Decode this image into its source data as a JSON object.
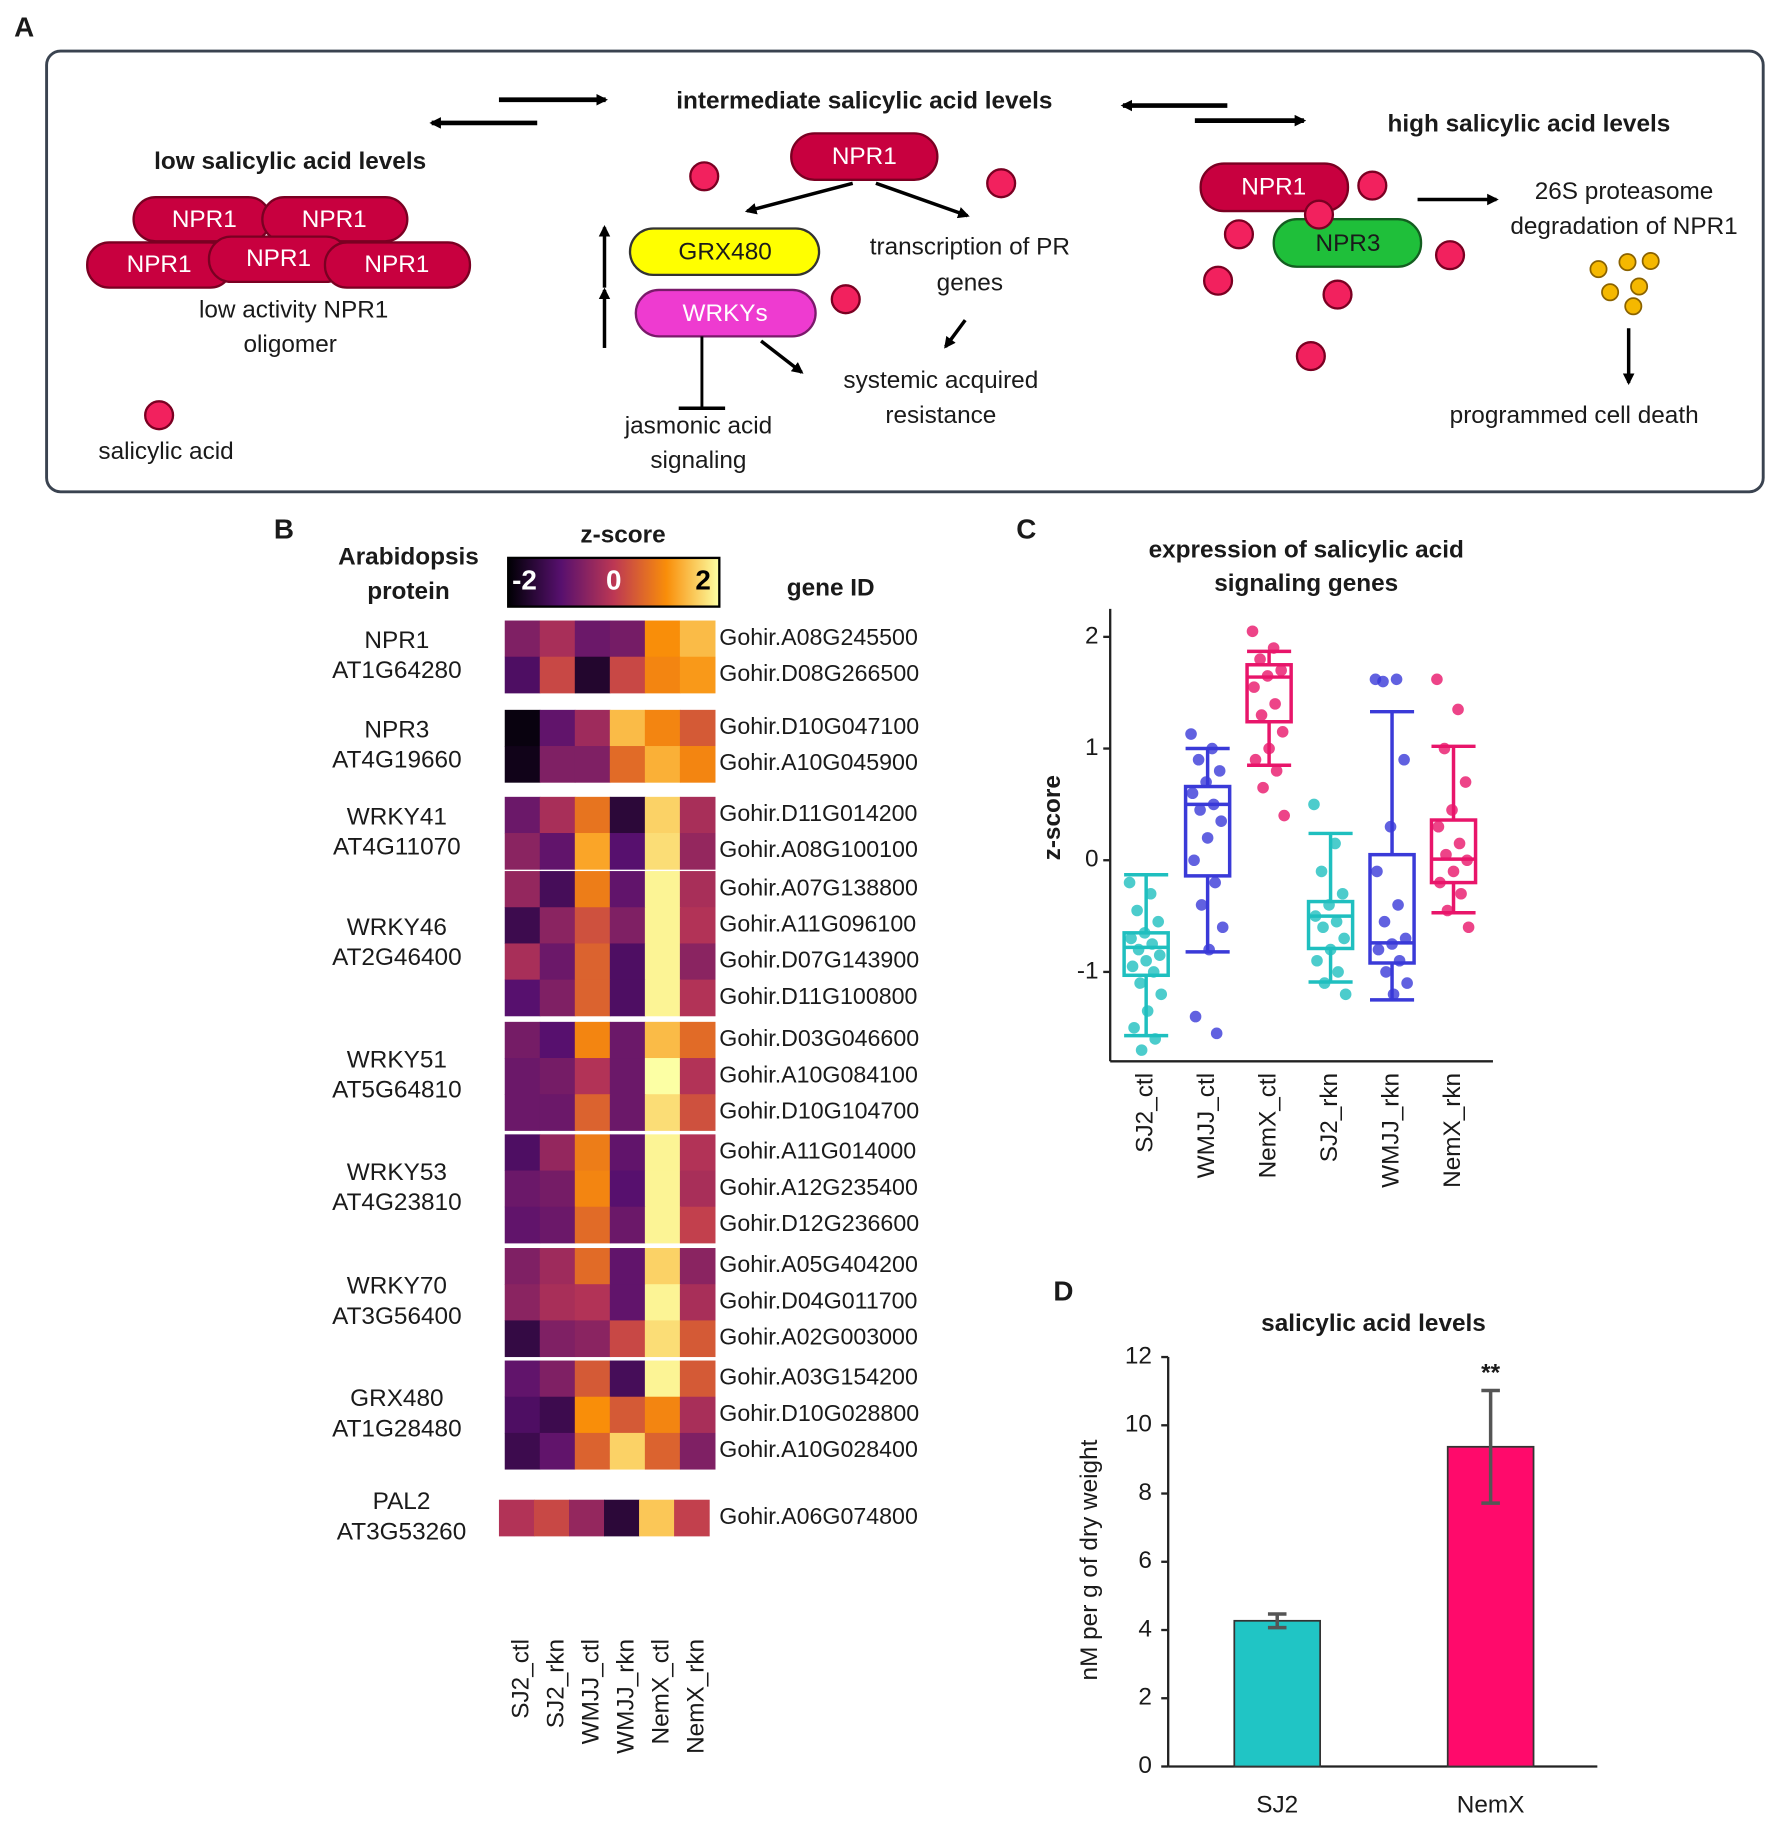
{
  "panels": [
    "A",
    "B",
    "C",
    "D"
  ],
  "diagram": {
    "low": {
      "title": "low salicylic acid levels",
      "oligomer": [
        "NPR1",
        "NPR1",
        "NPR1",
        "NPR1",
        "NPR1"
      ],
      "caption": [
        "low activity NPR1",
        "oligomer"
      ],
      "legend": "salicylic acid"
    },
    "intermediate": {
      "title": "intermediate salicylic acid levels",
      "npr1": "NPR1",
      "grx": "GRX480",
      "wrky": "WRKYs",
      "pr": [
        "transcription of PR",
        "genes"
      ],
      "sar": [
        "systemic acquired",
        "resistance"
      ],
      "ja": [
        "jasmonic acid",
        "signaling"
      ]
    },
    "high": {
      "title": "high salicylic acid levels",
      "npr1": "NPR1",
      "npr3": "NPR3",
      "proteasome": [
        "26S proteasome",
        "degradation of NPR1"
      ],
      "death": "programmed cell death"
    }
  },
  "chart_data": [
    {
      "type": "heatmap",
      "row_header": [
        "Arabidopsis",
        "protein"
      ],
      "column_header": "gene ID",
      "colorbar_title": "z-score",
      "zlim": [
        -2,
        2
      ],
      "zticks": [
        -2,
        0,
        2
      ],
      "colormap": [
        "#000004",
        "#57106e",
        "#bc3754",
        "#f98e09",
        "#fcffa4"
      ],
      "columns": [
        "SJ2_ctl",
        "SJ2_rkn",
        "WMJJ_ctl",
        "WMJJ_rkn",
        "NemX_ctl",
        "NemX_rkn"
      ],
      "groups": [
        {
          "protein": "NPR1",
          "locus": "AT1G64280",
          "genes": [
            "Gohir.A08G245500",
            "Gohir.D08G266500"
          ],
          "values": [
            [
              -0.6,
              -0.2,
              -0.8,
              -0.7,
              1.0,
              1.4
            ],
            [
              -1.1,
              0.2,
              -1.6,
              0.2,
              0.9,
              1.1
            ]
          ]
        },
        {
          "protein": "NPR3",
          "locus": "AT4G19660",
          "genes": [
            "Gohir.D10G047100",
            "Gohir.A10G045900"
          ],
          "values": [
            [
              -1.9,
              -0.9,
              -0.3,
              1.4,
              0.9,
              0.4
            ],
            [
              -1.8,
              -0.6,
              -0.6,
              0.6,
              1.3,
              0.9
            ]
          ]
        },
        {
          "protein": "WRKY41",
          "locus": "AT4G11070",
          "genes": [
            "Gohir.D11G014200",
            "Gohir.A08G100100"
          ],
          "values": [
            [
              -0.8,
              -0.2,
              0.7,
              -1.5,
              1.6,
              -0.2
            ],
            [
              -0.5,
              -0.9,
              1.2,
              -1.0,
              1.7,
              -0.4
            ]
          ]
        },
        {
          "protein": "WRKY46",
          "locus": "AT2G46400",
          "genes": [
            "Gohir.A07G138800",
            "Gohir.A11G096100",
            "Gohir.D07G143900",
            "Gohir.D11G100800"
          ],
          "values": [
            [
              -0.4,
              -1.2,
              0.8,
              -0.9,
              1.9,
              -0.2
            ],
            [
              -1.3,
              -0.5,
              0.3,
              -0.6,
              1.9,
              -0.1
            ],
            [
              -0.2,
              -0.8,
              0.5,
              -1.1,
              1.9,
              -0.5
            ],
            [
              -1.0,
              -0.6,
              0.5,
              -1.1,
              1.9,
              -0.1
            ]
          ]
        },
        {
          "protein": "WRKY51",
          "locus": "AT5G64810",
          "genes": [
            "Gohir.D03G046600",
            "Gohir.A10G084100",
            "Gohir.D10G104700"
          ],
          "values": [
            [
              -0.7,
              -1.0,
              0.9,
              -0.8,
              1.4,
              0.6
            ],
            [
              -0.8,
              -0.7,
              -0.1,
              -0.8,
              2.0,
              -0.1
            ],
            [
              -0.8,
              -0.8,
              0.5,
              -0.8,
              1.7,
              0.3
            ]
          ]
        },
        {
          "protein": "WRKY53",
          "locus": "AT4G23810",
          "genes": [
            "Gohir.A11G014000",
            "Gohir.A12G235400",
            "Gohir.D12G236600"
          ],
          "values": [
            [
              -1.1,
              -0.4,
              0.8,
              -0.9,
              1.9,
              -0.1
            ],
            [
              -0.8,
              -0.7,
              0.9,
              -1.0,
              1.9,
              -0.2
            ],
            [
              -0.9,
              -0.8,
              0.6,
              -0.8,
              1.9,
              0.1
            ]
          ]
        },
        {
          "protein": "WRKY70",
          "locus": "AT3G56400",
          "genes": [
            "Gohir.A05G404200",
            "Gohir.D04G011700",
            "Gohir.A02G003000"
          ],
          "values": [
            [
              -0.6,
              -0.3,
              0.6,
              -0.9,
              1.6,
              -0.5
            ],
            [
              -0.5,
              -0.2,
              -0.1,
              -0.9,
              1.9,
              -0.2
            ],
            [
              -1.4,
              -0.6,
              -0.5,
              0.2,
              1.7,
              0.4
            ]
          ]
        },
        {
          "protein": "GRX480",
          "locus": "AT1G28480",
          "genes": [
            "Gohir.A03G154200",
            "Gohir.D10G028800",
            "Gohir.A10G028400"
          ],
          "values": [
            [
              -0.9,
              -0.6,
              0.4,
              -1.2,
              1.9,
              0.4
            ],
            [
              -1.1,
              -1.3,
              1.0,
              0.4,
              0.9,
              -0.2
            ],
            [
              -1.3,
              -0.9,
              0.5,
              1.6,
              0.5,
              -0.6
            ]
          ]
        },
        {
          "protein": "PAL2",
          "locus": "AT3G53260",
          "genes": [
            "Gohir.A06G074800"
          ],
          "values": [
            [
              -0.1,
              0.2,
              -0.4,
              -1.5,
              1.5,
              0.1
            ]
          ]
        }
      ]
    },
    {
      "type": "box",
      "title": [
        "expression of salicylic acid",
        "signaling genes"
      ],
      "y_label": "z-score",
      "categories": [
        "SJ2_ctl",
        "WMJJ_ctl",
        "NemX_ctl",
        "SJ2_rkn",
        "WMJJ_rkn",
        "NemX_rkn"
      ],
      "colors": [
        "#1fbfbf",
        "#3a3ad8",
        "#e8156a",
        "#1fbfbf",
        "#3a3ad8",
        "#e8156a"
      ],
      "ylim": [
        -1.8,
        2.25
      ],
      "yticks": [
        -1,
        0,
        1,
        2
      ],
      "boxes": [
        {
          "whisker_low": -1.57,
          "q1": -1.03,
          "median": -0.78,
          "q3": -0.65,
          "whisker_high": -0.13,
          "points": [
            -0.2,
            -0.3,
            -0.45,
            -0.55,
            -0.65,
            -0.7,
            -0.75,
            -0.8,
            -0.85,
            -0.9,
            -0.95,
            -1.0,
            -1.1,
            -1.2,
            -1.35,
            -1.5,
            -1.6,
            -1.7
          ]
        },
        {
          "whisker_low": -0.82,
          "q1": -0.14,
          "median": 0.5,
          "q3": 0.66,
          "whisker_high": 1.0,
          "points": [
            1.13,
            1.0,
            0.9,
            0.8,
            0.7,
            0.6,
            0.5,
            0.45,
            0.35,
            0.2,
            0.0,
            -0.2,
            -0.4,
            -0.6,
            -0.8,
            -1.4,
            -1.55
          ]
        },
        {
          "whisker_low": 0.85,
          "q1": 1.24,
          "median": 1.64,
          "q3": 1.75,
          "whisker_high": 1.87,
          "points": [
            2.05,
            1.9,
            1.8,
            1.7,
            1.65,
            1.55,
            1.4,
            1.3,
            1.15,
            1.0,
            0.9,
            0.8,
            0.65,
            0.4
          ]
        },
        {
          "whisker_low": -1.09,
          "q1": -0.79,
          "median": -0.5,
          "q3": -0.37,
          "whisker_high": 0.24,
          "points": [
            0.5,
            0.15,
            -0.1,
            -0.3,
            -0.4,
            -0.5,
            -0.55,
            -0.6,
            -0.7,
            -0.8,
            -0.9,
            -1.0,
            -1.1,
            -1.2
          ]
        },
        {
          "whisker_low": -1.25,
          "q1": -0.92,
          "median": -0.74,
          "q3": 0.05,
          "whisker_high": 1.33,
          "points": [
            1.62,
            1.62,
            1.6,
            0.9,
            0.3,
            -0.1,
            -0.4,
            -0.55,
            -0.7,
            -0.75,
            -0.8,
            -0.9,
            -1.0,
            -1.1,
            -1.2
          ]
        },
        {
          "whisker_low": -0.47,
          "q1": -0.2,
          "median": 0.01,
          "q3": 0.36,
          "whisker_high": 1.02,
          "points": [
            1.62,
            1.35,
            1.0,
            0.7,
            0.45,
            0.3,
            0.15,
            0.05,
            0.0,
            -0.1,
            -0.2,
            -0.3,
            -0.45,
            -0.6
          ]
        }
      ]
    },
    {
      "type": "bar",
      "title": "salicylic acid levels",
      "y_label": "nM per g of dry weight",
      "categories": [
        "SJ2",
        "NemX"
      ],
      "values": [
        4.27,
        9.37
      ],
      "errors": [
        0.2,
        1.65
      ],
      "annotations": [
        null,
        "**"
      ],
      "colors": [
        "#20c5c5",
        "#ff0a6b"
      ],
      "ylim": [
        0,
        12
      ],
      "yticks": [
        0,
        2,
        4,
        6,
        8,
        10,
        12
      ]
    }
  ]
}
